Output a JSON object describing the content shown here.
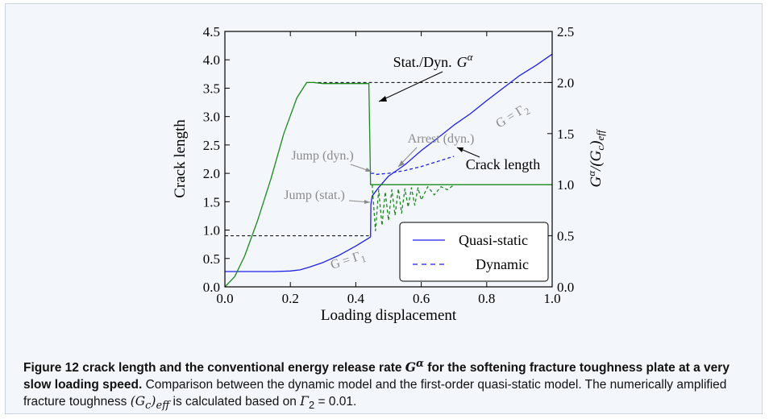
{
  "chart_data": {
    "type": "line",
    "xlabel": "Loading displacement",
    "ylabel": "Crack length",
    "y2label": "G^α/(G_c)_eff",
    "xlim": [
      0.0,
      1.0
    ],
    "ylim": [
      0.0,
      4.5
    ],
    "y2lim": [
      0.0,
      2.5
    ],
    "xticks": [
      "0.0",
      "0.2",
      "0.4",
      "0.6",
      "0.8",
      "1.0"
    ],
    "yticks": [
      "0.0",
      "0.5",
      "1.0",
      "1.5",
      "2.0",
      "2.5",
      "3.0",
      "3.5",
      "4.0",
      "4.5"
    ],
    "y2ticks": [
      "0.0",
      "0.5",
      "1.0",
      "1.5",
      "2.0",
      "2.5"
    ],
    "grid": false,
    "legend_position": "lower-right",
    "legend": [
      {
        "label": "Quasi-static",
        "style": "solid",
        "color": "#1f1fe6"
      },
      {
        "label": "Dynamic",
        "style": "dashed",
        "color": "#1f1fe6"
      }
    ],
    "series": [
      {
        "name": "Quasi-static",
        "axis": "left",
        "color": "#1f1fe6",
        "style": "solid",
        "x": [
          0.0,
          0.1,
          0.15,
          0.2,
          0.23,
          0.26,
          0.3,
          0.35,
          0.4,
          0.44,
          0.445,
          0.446,
          0.45,
          0.47,
          0.5,
          0.55,
          0.6,
          0.65,
          0.7,
          0.75,
          0.8,
          0.85,
          0.9,
          0.95,
          1.0
        ],
        "y": [
          0.27,
          0.27,
          0.27,
          0.28,
          0.3,
          0.35,
          0.43,
          0.56,
          0.72,
          0.86,
          0.88,
          1.45,
          1.6,
          1.75,
          1.95,
          2.15,
          2.4,
          2.62,
          2.85,
          3.05,
          3.28,
          3.5,
          3.72,
          3.9,
          4.1
        ]
      },
      {
        "name": "Dynamic",
        "axis": "left",
        "color": "#1f1fe6",
        "style": "dashed",
        "x": [
          0.446,
          0.455,
          0.46,
          0.5,
          0.55,
          0.6,
          0.7
        ],
        "y": [
          2.0,
          2.0,
          1.98,
          2.0,
          2.05,
          2.12,
          2.3
        ]
      },
      {
        "name": "",
        "axis": "right",
        "color": "#1a8a1a",
        "style": "solid",
        "x": [
          0.0,
          0.03,
          0.06,
          0.1,
          0.14,
          0.18,
          0.22,
          0.25,
          0.27,
          0.3,
          0.35,
          0.4,
          0.44,
          0.445,
          0.45,
          0.5,
          0.6,
          0.8,
          1.0
        ],
        "y": [
          0.0,
          0.1,
          0.3,
          0.65,
          1.05,
          1.5,
          1.85,
          2.0,
          2.0,
          1.99,
          1.99,
          1.99,
          1.99,
          1.0,
          1.0,
          1.0,
          1.0,
          1.0,
          1.0
        ]
      },
      {
        "name": "",
        "axis": "right",
        "color": "#1a8a1a",
        "style": "dashed",
        "x": [
          0.45,
          0.46,
          0.47,
          0.48,
          0.49,
          0.5,
          0.51,
          0.52,
          0.53,
          0.54,
          0.55,
          0.56,
          0.57,
          0.58,
          0.59,
          0.6,
          0.62,
          0.64,
          0.66,
          0.68,
          0.7
        ],
        "y": [
          1.0,
          0.55,
          0.95,
          0.6,
          0.93,
          0.65,
          0.95,
          0.7,
          0.96,
          0.72,
          0.96,
          0.78,
          0.97,
          0.8,
          0.97,
          0.85,
          0.98,
          0.9,
          0.98,
          0.95,
          1.0
        ]
      }
    ],
    "reference_lines": [
      {
        "axis": "right",
        "y": 2.0,
        "x_from": 0.25,
        "x_to": 1.0,
        "style": "dashed"
      },
      {
        "axis": "right",
        "y": 0.5,
        "x_from": 0.0,
        "x_to": 0.44,
        "style": "dashed"
      }
    ],
    "annotations": {
      "stat_dyn": "Stat./Dyn.",
      "stat_dyn_symbol": "G",
      "stat_dyn_superscript": "α",
      "arrest": "Arrest (dyn.)",
      "jump_dyn": "Jump (dyn.)",
      "jump_stat": "Jump (stat.)",
      "crack_length": "Crack length",
      "gamma1_prefix": "G = Γ",
      "gamma1_sub": "1",
      "gamma2_prefix": "G = Γ",
      "gamma2_sub": "2"
    }
  },
  "caption": {
    "bold_prefix": "Figure 12  crack length and the conventional energy release rate",
    "bold_symbol": "G",
    "bold_superscript": "α",
    "bold_suffix": " for the softening fracture toughness plate at a very slow loading speed.",
    "body_1": " Comparison between the dynamic model and the first-order quasi-static model. The numerically amplified fracture toughness ",
    "body_symbol": "(G",
    "body_sub_c": "c",
    "body_sub_eff": ")",
    "body_eff": "eff",
    "body_2": " is calculated based on ",
    "gamma_symbol": "Γ",
    "gamma_sub": "2",
    "gamma_value": " = 0.01."
  }
}
